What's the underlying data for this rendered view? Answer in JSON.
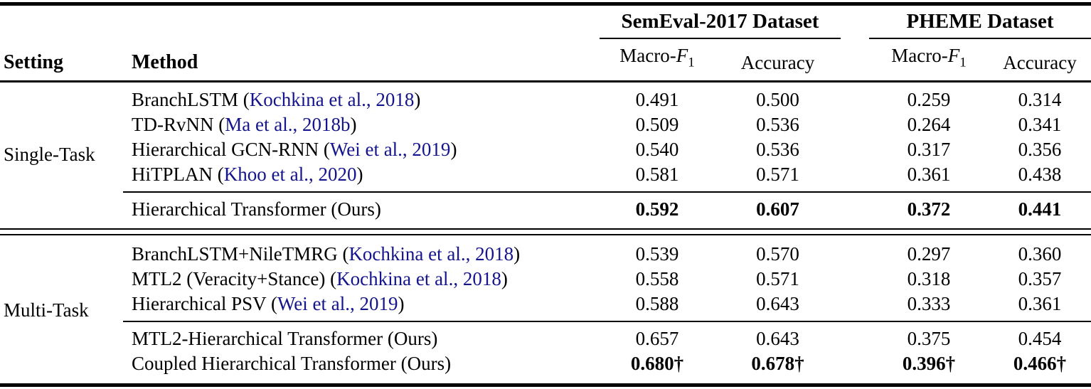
{
  "header": {
    "setting_label": "Setting",
    "method_label": "Method",
    "group1": "SemEval-2017 Dataset",
    "group2": "PHEME Dataset",
    "metric": {
      "prefix": "Macro-",
      "symbol": "F",
      "sub": "1"
    },
    "accuracy_label": "Accuracy"
  },
  "sections": [
    {
      "setting": "Single-Task",
      "baselines": [
        {
          "pre": "BranchLSTM (",
          "cite": "Kochkina et al., 2018",
          "post": ")",
          "values": [
            "0.491",
            "0.500",
            "0.259",
            "0.314"
          ]
        },
        {
          "pre": "TD-RvNN (",
          "cite": "Ma et al., 2018b",
          "post": ")",
          "values": [
            "0.509",
            "0.536",
            "0.264",
            "0.341"
          ]
        },
        {
          "pre": "Hierarchical GCN-RNN (",
          "cite": "Wei et al., 2019",
          "post": ")",
          "values": [
            "0.540",
            "0.536",
            "0.317",
            "0.356"
          ]
        },
        {
          "pre": "HiTPLAN (",
          "cite": "Khoo et al., 2020",
          "post": ")",
          "values": [
            "0.581",
            "0.571",
            "0.361",
            "0.438"
          ]
        }
      ],
      "ours": [
        {
          "name": "Hierarchical Transformer (Ours)",
          "bold": true,
          "values": [
            "0.592",
            "0.607",
            "0.372",
            "0.441"
          ]
        }
      ]
    },
    {
      "setting": "Multi-Task",
      "baselines": [
        {
          "pre": "BranchLSTM+NileTMRG (",
          "cite": "Kochkina et al., 2018",
          "post": ")",
          "values": [
            "0.539",
            "0.570",
            "0.297",
            "0.360"
          ]
        },
        {
          "pre": "MTL2 (Veracity+Stance) (",
          "cite": "Kochkina et al., 2018",
          "post": ")",
          "values": [
            "0.558",
            "0.571",
            "0.318",
            "0.357"
          ]
        },
        {
          "pre": "Hierarchical PSV (",
          "cite": "Wei et al., 2019",
          "post": ")",
          "values": [
            "0.588",
            "0.643",
            "0.333",
            "0.361"
          ]
        }
      ],
      "ours": [
        {
          "name": "MTL2-Hierarchical Transformer (Ours)",
          "bold": false,
          "values": [
            "0.657",
            "0.643",
            "0.375",
            "0.454"
          ]
        },
        {
          "name": "Coupled Hierarchical Transformer (Ours)",
          "bold": true,
          "values": [
            "0.680†",
            "0.678†",
            "0.396†",
            "0.466†"
          ]
        }
      ]
    }
  ],
  "colors": {
    "citation": "#14148C",
    "text": "#000000",
    "rule": "#000000"
  }
}
